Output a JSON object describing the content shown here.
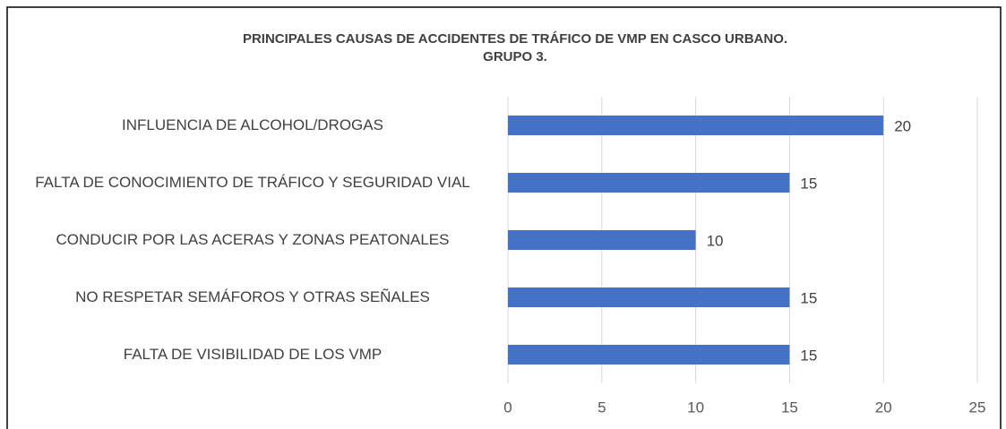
{
  "chart_data": {
    "type": "bar",
    "orientation": "horizontal",
    "title": [
      "PRINCIPALES CAUSAS DE ACCIDENTES DE TRÁFICO DE VMP EN CASCO URBANO.",
      "GRUPO 3."
    ],
    "categories": [
      "INFLUENCIA DE ALCOHOL/DROGAS",
      "FALTA DE CONOCIMIENTO DE TRÁFICO Y SEGURIDAD VIAL",
      "CONDUCIR POR LAS ACERAS Y ZONAS PEATONALES",
      "NO RESPETAR SEMÁFOROS Y OTRAS SEÑALES",
      "FALTA DE VISIBILIDAD DE LOS VMP"
    ],
    "values": [
      20,
      15,
      10,
      15,
      15
    ],
    "color": "#4472c4",
    "xlim": [
      0,
      25
    ],
    "xticks": [
      0,
      5,
      10,
      15,
      20,
      25
    ],
    "grid": true
  }
}
